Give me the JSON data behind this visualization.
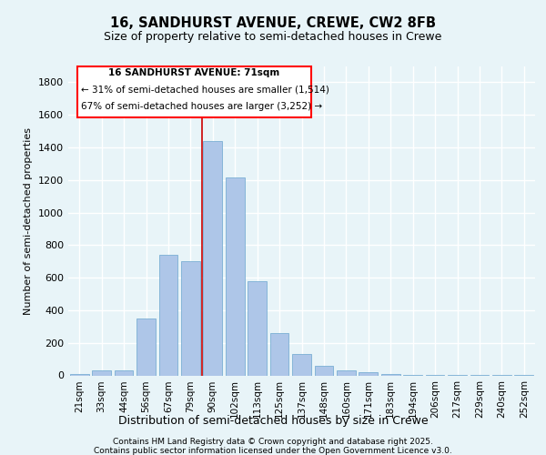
{
  "title_line1": "16, SANDHURST AVENUE, CREWE, CW2 8FB",
  "title_line2": "Size of property relative to semi-detached houses in Crewe",
  "xlabel": "Distribution of semi-detached houses by size in Crewe",
  "ylabel": "Number of semi-detached properties",
  "categories": [
    "21sqm",
    "33sqm",
    "44sqm",
    "56sqm",
    "67sqm",
    "79sqm",
    "90sqm",
    "102sqm",
    "113sqm",
    "125sqm",
    "137sqm",
    "148sqm",
    "160sqm",
    "171sqm",
    "183sqm",
    "194sqm",
    "206sqm",
    "217sqm",
    "229sqm",
    "240sqm",
    "252sqm"
  ],
  "values": [
    10,
    30,
    30,
    350,
    740,
    700,
    1440,
    1215,
    580,
    260,
    130,
    60,
    30,
    20,
    10,
    5,
    5,
    3,
    2,
    2,
    2
  ],
  "bar_color": "#aec6e8",
  "bar_edge_color": "#7bafd4",
  "red_line_index": 6,
  "annotation_title": "16 SANDHURST AVENUE: 71sqm",
  "annotation_line1": "← 31% of semi-detached houses are smaller (1,514)",
  "annotation_line2": "67% of semi-detached houses are larger (3,252) →",
  "ylim": [
    0,
    1900
  ],
  "yticks": [
    0,
    200,
    400,
    600,
    800,
    1000,
    1200,
    1400,
    1600,
    1800
  ],
  "background_color": "#e8f4f8",
  "grid_color": "#ffffff",
  "footer_line1": "Contains HM Land Registry data © Crown copyright and database right 2025.",
  "footer_line2": "Contains public sector information licensed under the Open Government Licence v3.0."
}
